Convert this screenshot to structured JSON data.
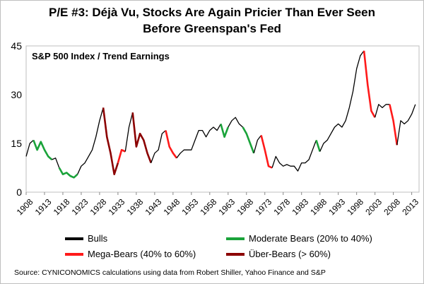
{
  "title_line1": "P/E #3:  Déjà Vu, Stocks Are Again Pricier Than Ever Seen",
  "title_line2": "Before Greenspan's Fed",
  "chart_data": {
    "type": "line",
    "inner_label": "S&P 500 Index / Trend Earnings",
    "ylim": [
      0,
      45
    ],
    "yticks": [
      0,
      15,
      30,
      45
    ],
    "xlim": [
      1908,
      2015
    ],
    "xticks": [
      1908,
      1913,
      1918,
      1923,
      1928,
      1933,
      1938,
      1943,
      1948,
      1953,
      1958,
      1963,
      1968,
      1973,
      1978,
      1983,
      1988,
      1993,
      1998,
      2003,
      2008,
      2013
    ],
    "legend": {
      "bulls": "Bulls",
      "moderate": "Moderate Bears (20% to 40%)",
      "mega": "Mega-Bears (40% to 60%)",
      "uber": "Über-Bears (> 60%)"
    },
    "colors": {
      "bulls": "#000000",
      "moderate": "#1aa33a",
      "mega": "#ff1a1a",
      "uber": "#8b0000"
    },
    "series": [
      {
        "name": "Bulls",
        "type": "bulls",
        "points": [
          [
            1908,
            11
          ],
          [
            1909,
            15
          ],
          [
            1910,
            16
          ]
        ]
      },
      {
        "name": "Moderate Bears",
        "type": "moderate",
        "points": [
          [
            1910,
            16
          ],
          [
            1911,
            13
          ],
          [
            1912,
            15.5
          ],
          [
            1913,
            13
          ],
          [
            1914,
            11
          ],
          [
            1915,
            10
          ]
        ]
      },
      {
        "name": "Bulls",
        "type": "bulls",
        "points": [
          [
            1915,
            10
          ],
          [
            1916,
            10.5
          ],
          [
            1917,
            7.5
          ]
        ]
      },
      {
        "name": "Moderate Bears",
        "type": "moderate",
        "points": [
          [
            1917,
            7.5
          ],
          [
            1918,
            5.5
          ],
          [
            1919,
            6
          ],
          [
            1920,
            5
          ],
          [
            1921,
            4.5
          ],
          [
            1922,
            5.5
          ]
        ]
      },
      {
        "name": "Bulls",
        "type": "bulls",
        "points": [
          [
            1922,
            5.5
          ],
          [
            1923,
            8
          ],
          [
            1924,
            9
          ],
          [
            1925,
            11
          ],
          [
            1926,
            13
          ],
          [
            1927,
            17
          ],
          [
            1928,
            22
          ],
          [
            1929,
            26
          ]
        ]
      },
      {
        "name": "Über-Bears",
        "type": "uber",
        "points": [
          [
            1929,
            26
          ],
          [
            1930,
            17
          ],
          [
            1931,
            12
          ],
          [
            1932,
            5.5
          ],
          [
            1933,
            9
          ]
        ]
      },
      {
        "name": "Mega-Bears",
        "type": "mega",
        "points": [
          [
            1933,
            9
          ],
          [
            1934,
            13
          ],
          [
            1935,
            12.5
          ]
        ]
      },
      {
        "name": "Bulls",
        "type": "bulls",
        "points": [
          [
            1935,
            12.5
          ],
          [
            1936,
            20
          ],
          [
            1937,
            24.5
          ]
        ]
      },
      {
        "name": "Über-Bears",
        "type": "uber",
        "points": [
          [
            1937,
            24.5
          ],
          [
            1938,
            14
          ],
          [
            1939,
            18
          ],
          [
            1940,
            16
          ],
          [
            1941,
            12
          ],
          [
            1942,
            9
          ]
        ]
      },
      {
        "name": "Bulls",
        "type": "bulls",
        "points": [
          [
            1942,
            9
          ],
          [
            1943,
            12
          ],
          [
            1944,
            13
          ],
          [
            1945,
            18
          ],
          [
            1946,
            19
          ]
        ]
      },
      {
        "name": "Mega-Bears",
        "type": "mega",
        "points": [
          [
            1946,
            19
          ],
          [
            1947,
            14
          ],
          [
            1948,
            12
          ],
          [
            1949,
            10.5
          ]
        ]
      },
      {
        "name": "Bulls",
        "type": "bulls",
        "points": [
          [
            1949,
            10.5
          ],
          [
            1950,
            12
          ],
          [
            1951,
            13
          ],
          [
            1952,
            13
          ],
          [
            1953,
            13
          ],
          [
            1954,
            16
          ],
          [
            1955,
            19
          ],
          [
            1956,
            19
          ],
          [
            1957,
            17
          ],
          [
            1958,
            19
          ],
          [
            1959,
            20
          ],
          [
            1960,
            19
          ],
          [
            1961,
            21
          ]
        ]
      },
      {
        "name": "Moderate Bears",
        "type": "moderate",
        "points": [
          [
            1961,
            21
          ],
          [
            1962,
            17
          ],
          [
            1963,
            20
          ]
        ]
      },
      {
        "name": "Bulls",
        "type": "bulls",
        "points": [
          [
            1963,
            20
          ],
          [
            1964,
            22
          ],
          [
            1965,
            23
          ],
          [
            1966,
            21
          ],
          [
            1967,
            20
          ]
        ]
      },
      {
        "name": "Moderate Bears",
        "type": "moderate",
        "points": [
          [
            1967,
            20
          ],
          [
            1968,
            18
          ],
          [
            1969,
            15
          ],
          [
            1970,
            12
          ]
        ]
      },
      {
        "name": "Bulls",
        "type": "bulls",
        "points": [
          [
            1970,
            12
          ],
          [
            1971,
            16
          ],
          [
            1972,
            17.5
          ]
        ]
      },
      {
        "name": "Mega-Bears",
        "type": "mega",
        "points": [
          [
            1972,
            17.5
          ],
          [
            1973,
            13
          ],
          [
            1974,
            8
          ],
          [
            1975,
            7.5
          ]
        ]
      },
      {
        "name": "Bulls",
        "type": "bulls",
        "points": [
          [
            1975,
            7.5
          ],
          [
            1976,
            11
          ],
          [
            1977,
            9
          ],
          [
            1978,
            8
          ],
          [
            1979,
            8.5
          ],
          [
            1980,
            8
          ],
          [
            1981,
            8
          ],
          [
            1982,
            6.5
          ],
          [
            1983,
            9
          ],
          [
            1984,
            9
          ],
          [
            1985,
            10
          ],
          [
            1986,
            13
          ],
          [
            1987,
            16
          ]
        ]
      },
      {
        "name": "Moderate Bears",
        "type": "moderate",
        "points": [
          [
            1987,
            16
          ],
          [
            1988,
            12.5
          ]
        ]
      },
      {
        "name": "Bulls",
        "type": "bulls",
        "points": [
          [
            1988,
            12.5
          ],
          [
            1989,
            15
          ],
          [
            1990,
            16
          ],
          [
            1991,
            18
          ],
          [
            1992,
            20
          ],
          [
            1993,
            21
          ],
          [
            1994,
            20
          ],
          [
            1995,
            22
          ],
          [
            1996,
            26
          ],
          [
            1997,
            31
          ],
          [
            1998,
            38
          ],
          [
            1999,
            42
          ],
          [
            2000,
            43.5
          ]
        ]
      },
      {
        "name": "Mega-Bears",
        "type": "mega",
        "points": [
          [
            2000,
            43.5
          ],
          [
            2001,
            33
          ],
          [
            2002,
            25
          ],
          [
            2003,
            23
          ]
        ]
      },
      {
        "name": "Bulls",
        "type": "bulls",
        "points": [
          [
            2003,
            23
          ],
          [
            2004,
            27
          ],
          [
            2005,
            26
          ],
          [
            2006,
            27
          ],
          [
            2007,
            27
          ]
        ]
      },
      {
        "name": "Mega-Bears",
        "type": "mega",
        "points": [
          [
            2007,
            27
          ],
          [
            2008,
            22
          ],
          [
            2009,
            14.5
          ]
        ]
      },
      {
        "name": "Bulls",
        "type": "bulls",
        "points": [
          [
            2009,
            14.5
          ],
          [
            2010,
            22
          ],
          [
            2011,
            21
          ],
          [
            2012,
            22
          ],
          [
            2013,
            24
          ],
          [
            2014,
            27
          ]
        ]
      }
    ]
  },
  "source": "Source: CYNICONOMICS  calculations using data from Robert Shiller, Yahoo Finance and S&P"
}
